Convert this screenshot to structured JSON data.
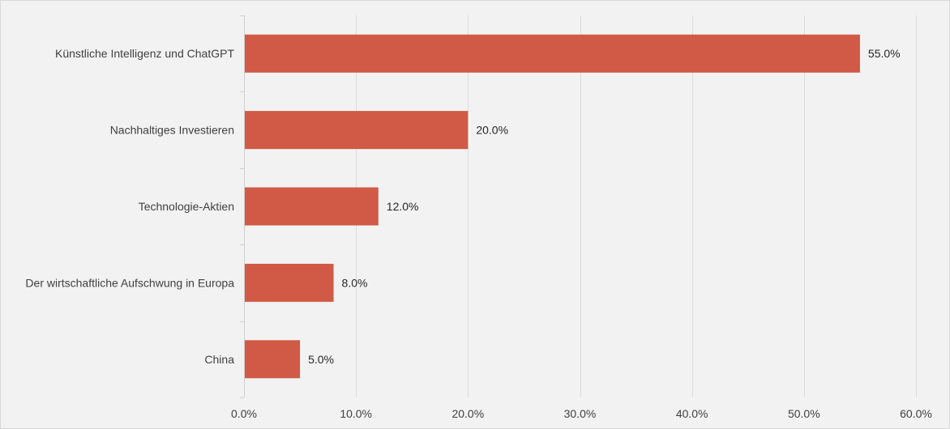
{
  "chart_data": {
    "type": "bar",
    "orientation": "horizontal",
    "categories": [
      "Künstliche Intelligenz und ChatGPT",
      "Nachhaltiges Investieren",
      "Technologie-Aktien",
      "Der wirtschaftliche Aufschwung in Europa",
      "China"
    ],
    "values": [
      55.0,
      20.0,
      12.0,
      8.0,
      5.0
    ],
    "data_labels": [
      "55.0%",
      "20.0%",
      "12.0%",
      "8.0%",
      "5.0%"
    ],
    "x_ticks": [
      0,
      10,
      20,
      30,
      40,
      50,
      60
    ],
    "x_tick_labels": [
      "0.0%",
      "10.0%",
      "20.0%",
      "30.0%",
      "40.0%",
      "50.0%",
      "60.0%"
    ],
    "xlim": [
      0,
      60
    ],
    "grid": "vertical",
    "legend": "none",
    "colors": {
      "bar": "#d05a45",
      "background": "#f3f2f2",
      "grid": "#dcdcdc"
    }
  }
}
